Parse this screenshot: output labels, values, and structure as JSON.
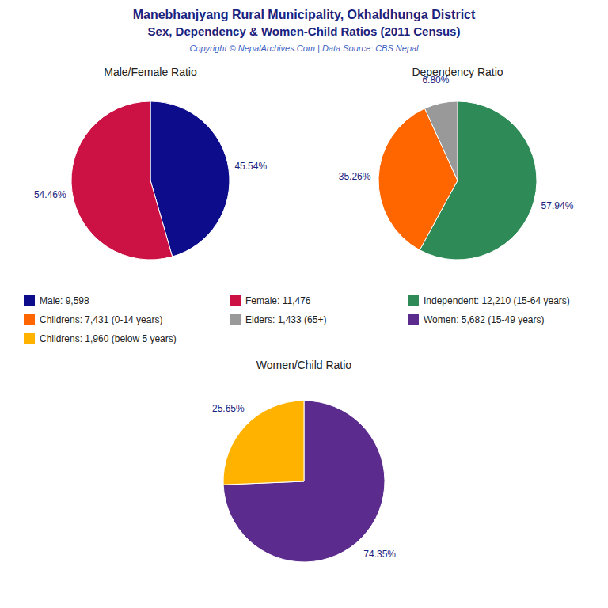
{
  "title": "Manebhanjyang Rural Municipality, Okhaldhunga District",
  "subtitle": "Sex, Dependency & Women-Child Ratios (2011 Census)",
  "annotations": [
    "Copyright © NepalArchives.Com | Data Source: CBS Nepal"
  ],
  "chart_data": [
    {
      "type": "pie",
      "title": "Male/Female Ratio",
      "categories": [
        "Male: 9,598",
        "Female: 11,476"
      ],
      "values": [
        45.54,
        54.46
      ],
      "value_labels": [
        "45.54%",
        "54.46%"
      ],
      "colors": [
        "#0D0D8B",
        "#CC1144"
      ],
      "data_labels": true,
      "legend": "bottom"
    },
    {
      "type": "pie",
      "title": "Dependency Ratio",
      "categories": [
        "Independent: 12,210 (15-64 years)",
        "Childrens: 7,431 (0-14 years)",
        "Elders: 1,433 (65+)"
      ],
      "values": [
        57.94,
        35.26,
        6.8
      ],
      "value_labels": [
        "57.94%",
        "35.26%",
        "6.80%"
      ],
      "colors": [
        "#2E8B57",
        "#FF6600",
        "#999999"
      ],
      "data_labels": true,
      "legend": "bottom"
    },
    {
      "type": "pie",
      "title": "Women/Child Ratio",
      "categories": [
        "Women: 5,682 (15-49 years)",
        "Childrens: 1,960 (below 5 years)"
      ],
      "values": [
        74.35,
        25.65
      ],
      "value_labels": [
        "74.35%",
        "25.65%"
      ],
      "colors": [
        "#5B2C8D",
        "#FFB300"
      ],
      "data_labels": true,
      "legend": "top"
    }
  ]
}
